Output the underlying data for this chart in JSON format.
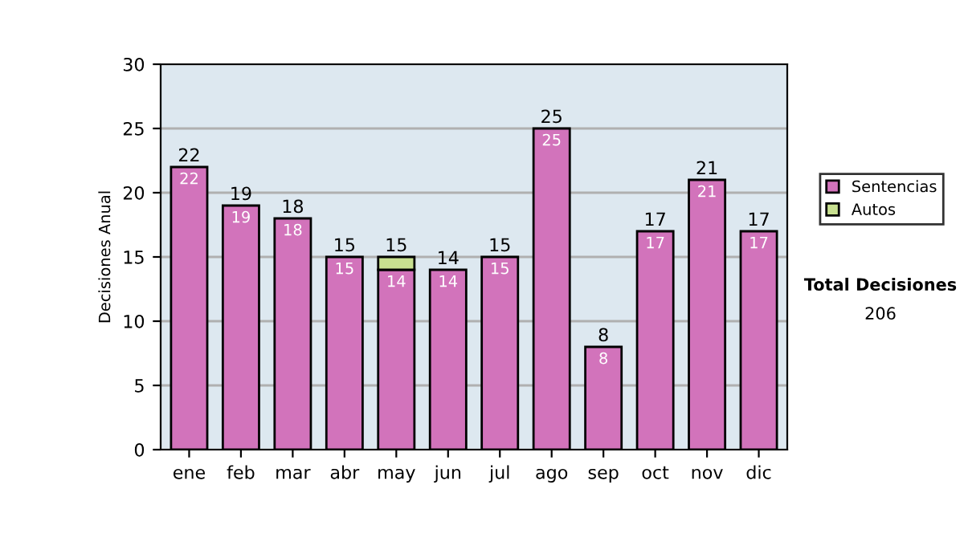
{
  "chart_data": {
    "type": "bar",
    "stacked": true,
    "ylabel": "Decisiones Anual",
    "categories": [
      "ene",
      "feb",
      "mar",
      "abr",
      "may",
      "jun",
      "jul",
      "ago",
      "sep",
      "oct",
      "nov",
      "dic"
    ],
    "series": [
      {
        "name": "Sentencias",
        "color": "#d273bb",
        "values": [
          22,
          19,
          18,
          15,
          14,
          14,
          15,
          25,
          8,
          17,
          21,
          17
        ],
        "value_labels": [
          "22",
          "19",
          "18",
          "15",
          "14",
          "14",
          "15",
          "25",
          "8",
          "17",
          "21",
          "17"
        ]
      },
      {
        "name": "Autos",
        "color": "#c8e090",
        "values": [
          null,
          null,
          null,
          null,
          1,
          null,
          null,
          null,
          null,
          null,
          null,
          null
        ]
      }
    ],
    "totals": [
      "22",
      "19",
      "18",
      "15",
      "15",
      "14",
      "15",
      "25",
      "8",
      "17",
      "21",
      "17"
    ],
    "ylim": [
      0,
      30
    ],
    "yticks": [
      0,
      5,
      10,
      15,
      20,
      25,
      30
    ],
    "grid": "y",
    "legend": "right",
    "annotations": [
      "Total Decisiones",
      "206"
    ]
  }
}
